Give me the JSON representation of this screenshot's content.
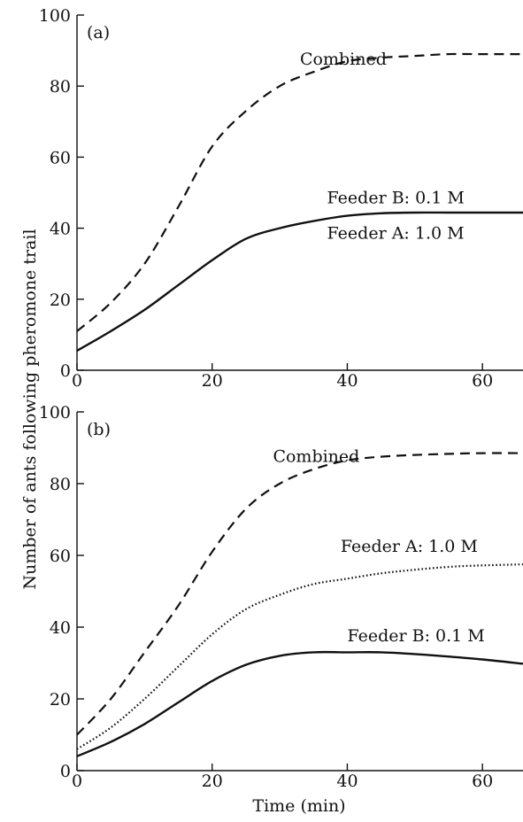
{
  "figure": {
    "ylabel": "Number of ants following pheromone trail",
    "xlabel": "Time (min)"
  },
  "chart_data": [
    {
      "type": "line",
      "panel_label": "(a)",
      "xlim": [
        0,
        66
      ],
      "ylim": [
        0,
        100
      ],
      "x_ticks": [
        0,
        20,
        40,
        60
      ],
      "y_ticks": [
        0,
        20,
        40,
        60,
        80,
        100
      ],
      "grid": false,
      "series": [
        {
          "name": "Combined",
          "style": "dashed",
          "label_at": [
            33,
            86
          ],
          "x": [
            0,
            5,
            10,
            15,
            20,
            25,
            30,
            35,
            40,
            45,
            50,
            55,
            60,
            66
          ],
          "y": [
            11,
            19,
            30,
            46,
            63,
            73,
            80,
            84,
            87,
            88,
            88.5,
            89,
            89,
            89
          ]
        },
        {
          "name": "Feeder B: 0.1 M",
          "style": "solid",
          "label_at": [
            37,
            47
          ],
          "x": [
            0,
            5,
            10,
            15,
            20,
            25,
            30,
            35,
            40,
            45,
            50,
            55,
            60,
            66
          ],
          "y": [
            5.5,
            11,
            17,
            24,
            31,
            37,
            40,
            42,
            43.5,
            44.2,
            44.4,
            44.4,
            44.4,
            44.4
          ]
        },
        {
          "name": "Feeder A: 1.0 M",
          "style": "solid",
          "label_at": [
            37,
            37
          ],
          "x": [],
          "y": []
        }
      ]
    },
    {
      "type": "line",
      "panel_label": "(b)",
      "xlim": [
        0,
        66
      ],
      "ylim": [
        0,
        100
      ],
      "x_ticks": [
        0,
        20,
        40,
        60
      ],
      "y_ticks": [
        0,
        20,
        40,
        60,
        80,
        100
      ],
      "grid": false,
      "series": [
        {
          "name": "Combined",
          "style": "dashed",
          "label_at": [
            29,
            86
          ],
          "x": [
            0,
            5,
            10,
            15,
            20,
            25,
            30,
            35,
            40,
            45,
            50,
            55,
            60,
            66
          ],
          "y": [
            10,
            20,
            33,
            46,
            61,
            73,
            80,
            84,
            86.5,
            87.5,
            88,
            88.3,
            88.5,
            88.5
          ]
        },
        {
          "name": "Feeder A: 1.0 M",
          "style": "dotted",
          "label_at": [
            39,
            61
          ],
          "x": [
            0,
            5,
            10,
            15,
            20,
            25,
            30,
            35,
            40,
            45,
            50,
            55,
            60,
            66
          ],
          "y": [
            6,
            12,
            20,
            29,
            38,
            45,
            49,
            52,
            53.5,
            55,
            56,
            56.8,
            57.2,
            57.5
          ]
        },
        {
          "name": "Feeder B: 0.1 M",
          "style": "solid",
          "label_at": [
            40,
            36
          ],
          "x": [
            0,
            5,
            10,
            15,
            20,
            25,
            30,
            35,
            40,
            45,
            50,
            55,
            60,
            66
          ],
          "y": [
            4,
            8,
            13,
            19,
            25,
            29.5,
            32,
            33,
            33,
            33,
            32.5,
            31.8,
            31,
            29.8
          ]
        }
      ]
    }
  ]
}
